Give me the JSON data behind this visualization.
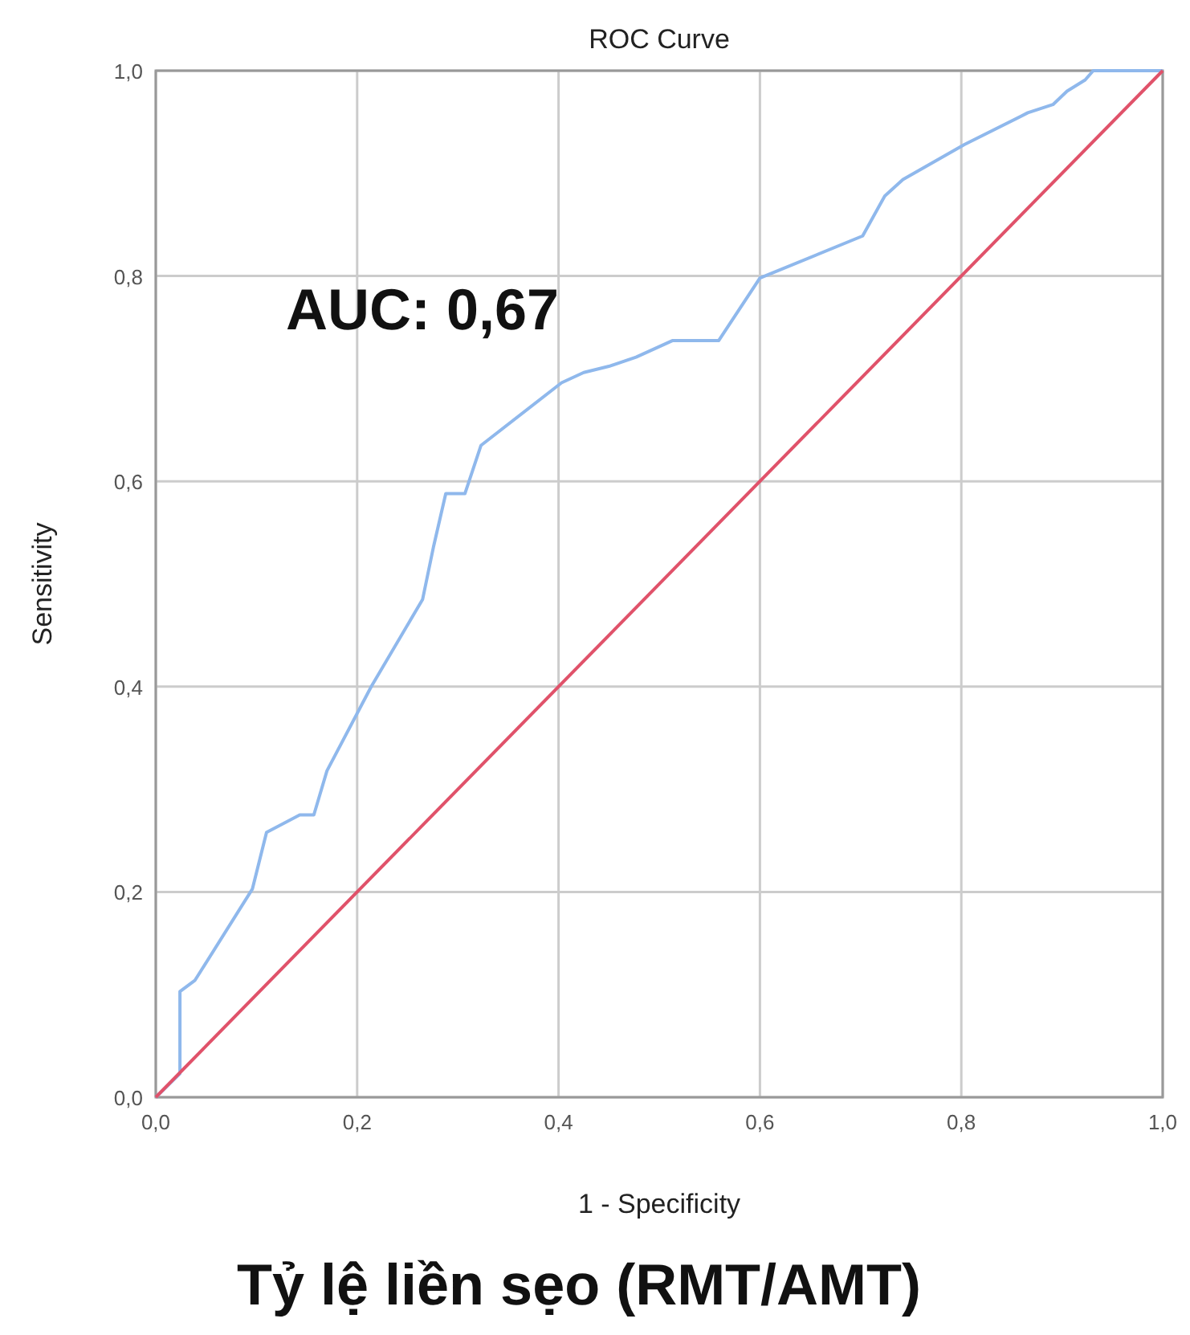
{
  "chart_data": {
    "type": "line",
    "title": "ROC Curve",
    "xlabel": "1 - Specificity",
    "ylabel": "Sensitivity",
    "annotations": [
      "AUC: 0,67",
      "Tỷ lệ liền sẹo (RMT/AMT)"
    ],
    "xlim": [
      0,
      1
    ],
    "ylim": [
      0,
      1
    ],
    "xticks": [
      {
        "value": 0,
        "label": "0,0"
      },
      {
        "value": 0.2,
        "label": "0,2"
      },
      {
        "value": 0.4,
        "label": "0,4"
      },
      {
        "value": 0.6,
        "label": "0,6"
      },
      {
        "value": 0.8,
        "label": "0,8"
      },
      {
        "value": 1,
        "label": "1,0"
      }
    ],
    "yticks": [
      {
        "value": 0,
        "label": "0,0"
      },
      {
        "value": 0.2,
        "label": "0,2"
      },
      {
        "value": 0.4,
        "label": "0,4"
      },
      {
        "value": 0.6,
        "label": "0,6"
      },
      {
        "value": 0.8,
        "label": "0,8"
      },
      {
        "value": 1,
        "label": "1,0"
      }
    ],
    "grid": true,
    "line_style": "solid",
    "marker": "none",
    "series": [
      {
        "color": "#8fb8ec",
        "x": [
          0,
          0.024,
          0.024,
          0.039,
          0.096,
          0.11,
          0.143,
          0.157,
          0.17,
          0.214,
          0.265,
          0.276,
          0.288,
          0.307,
          0.323,
          0.403,
          0.425,
          0.45,
          0.477,
          0.513,
          0.559,
          0.6,
          0.702,
          0.724,
          0.742,
          0.803,
          0.866,
          0.891,
          0.905,
          0.923,
          0.931,
          1
        ],
        "values": [
          0,
          0.023,
          0.103,
          0.114,
          0.203,
          0.258,
          0.275,
          0.275,
          0.318,
          0.4,
          0.485,
          0.537,
          0.588,
          0.588,
          0.635,
          0.696,
          0.706,
          0.712,
          0.721,
          0.737,
          0.737,
          0.798,
          0.839,
          0.878,
          0.894,
          0.928,
          0.959,
          0.967,
          0.98,
          0.991,
          1,
          1
        ]
      },
      {
        "color": "#e0526a",
        "x": [
          0,
          1
        ],
        "values": [
          0,
          1
        ]
      }
    ]
  }
}
